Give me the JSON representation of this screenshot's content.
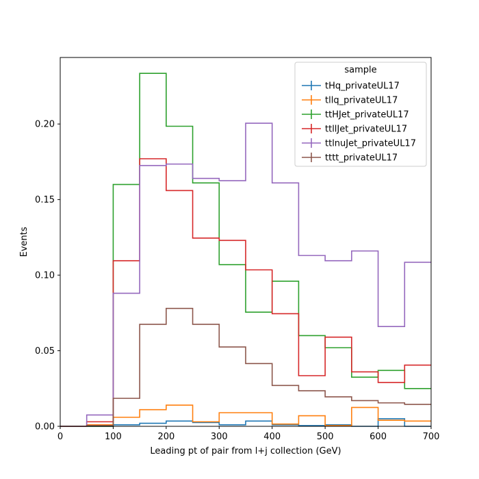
{
  "chart_data": {
    "type": "step",
    "xlabel": "Leading pt of pair from l+j collection (GeV)",
    "ylabel": "Events",
    "xlim": [
      0,
      700
    ],
    "ylim": [
      0,
      0.244
    ],
    "xticks": [
      "0",
      "100",
      "200",
      "300",
      "400",
      "500",
      "600",
      "700"
    ],
    "yticks": [
      "0.00",
      "0.05",
      "0.10",
      "0.15",
      "0.20"
    ],
    "bin_edges": [
      0,
      50,
      100,
      150,
      200,
      250,
      300,
      350,
      400,
      450,
      500,
      550,
      600,
      650,
      700
    ],
    "legend": {
      "title": "sample",
      "placement": "upper right"
    },
    "series": [
      {
        "name": "tHq_privateUL17",
        "color": "#1f77b4",
        "values": [
          0,
          0,
          0.001,
          0.002,
          0.0035,
          0.0025,
          0.001,
          0.0035,
          0.001,
          0.0005,
          0.001,
          0,
          0.005,
          0
        ]
      },
      {
        "name": "tllq_privateUL17",
        "color": "#ff7f0e",
        "values": [
          0,
          0.001,
          0.006,
          0.011,
          0.014,
          0.003,
          0.009,
          0.009,
          0.0015,
          0.007,
          0.0005,
          0.0125,
          0.004,
          0.0035
        ]
      },
      {
        "name": "ttHJet_privateUL17",
        "color": "#2ca02c",
        "values": [
          0,
          0,
          0.16,
          0.2335,
          0.1985,
          0.161,
          0.107,
          0.0755,
          0.096,
          0.06,
          0.052,
          0.0325,
          0.037,
          0.025
        ]
      },
      {
        "name": "ttllJet_privateUL17",
        "color": "#d62728",
        "values": [
          0,
          0.003,
          0.1095,
          0.177,
          0.156,
          0.1245,
          0.123,
          0.1035,
          0.0745,
          0.0335,
          0.059,
          0.036,
          0.029,
          0.0405
        ]
      },
      {
        "name": "ttlnuJet_privateUL17",
        "color": "#9467bd",
        "values": [
          0,
          0.0075,
          0.088,
          0.1725,
          0.1735,
          0.164,
          0.1625,
          0.2005,
          0.161,
          0.113,
          0.1095,
          0.116,
          0.066,
          0.1085
        ]
      },
      {
        "name": "tttt_privateUL17",
        "color": "#8c564b",
        "values": [
          0,
          0.0005,
          0.0185,
          0.0675,
          0.078,
          0.0675,
          0.0525,
          0.0415,
          0.027,
          0.0235,
          0.0195,
          0.017,
          0.0155,
          0.0145
        ]
      }
    ]
  }
}
